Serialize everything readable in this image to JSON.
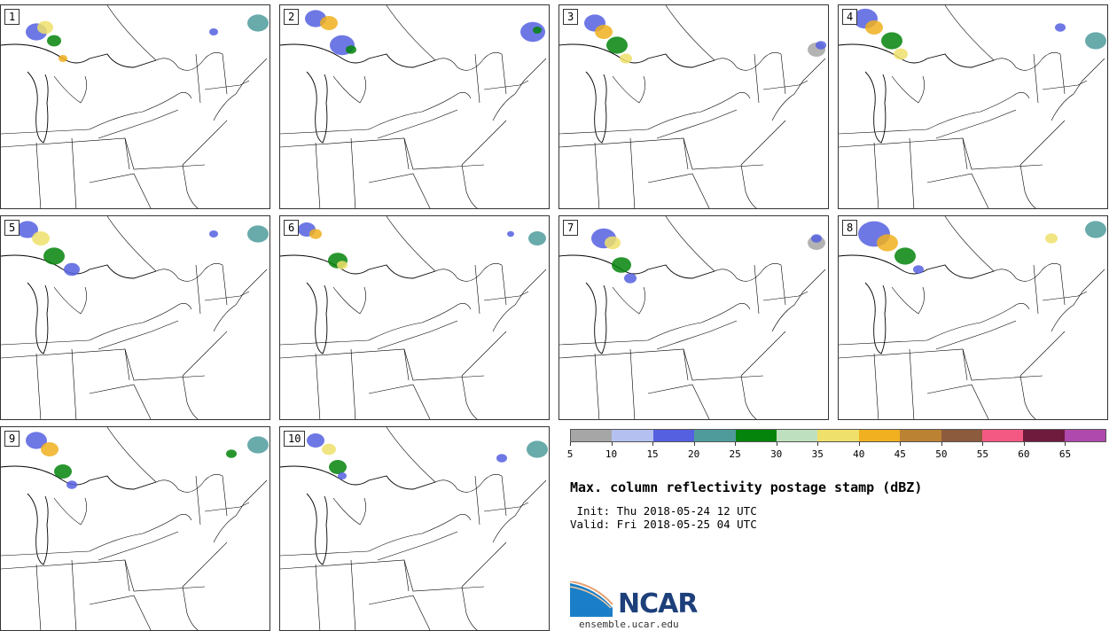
{
  "members": [
    "1",
    "2",
    "3",
    "4",
    "5",
    "6",
    "7",
    "8",
    "9",
    "10"
  ],
  "colorbar": {
    "colors": [
      "#a6a6a6",
      "#b4c0ef",
      "#5560e0",
      "#4f9b9c",
      "#04840a",
      "#bfe0bf",
      "#efe06b",
      "#f0b01f",
      "#bb8234",
      "#8c5a3d",
      "#f45983",
      "#6e1b3e",
      "#b049ad"
    ],
    "tick_labels": [
      "5",
      "10",
      "15",
      "20",
      "25",
      "30",
      "35",
      "40",
      "45",
      "50",
      "55",
      "60",
      "65"
    ]
  },
  "title": "Max. column reflectivity postage stamp (dBZ)",
  "init": " Init: Thu 2018-05-24 12 UTC",
  "valid": "Valid: Fri 2018-05-25 04 UTC",
  "logo": {
    "text": "NCAR",
    "site": "ensemble.ucar.edu"
  }
}
